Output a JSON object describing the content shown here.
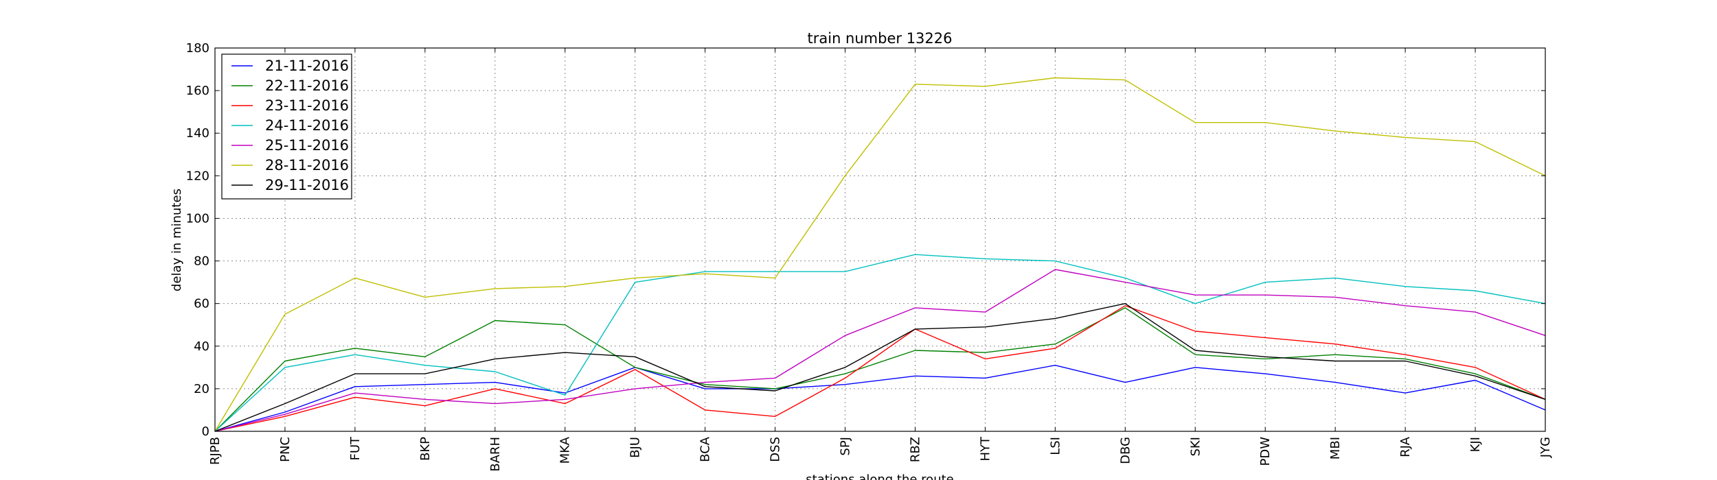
{
  "chart_data": {
    "type": "line",
    "title": "train number 13226",
    "xlabel": "stations along the route",
    "ylabel": "delay in minutes",
    "ylim": [
      0,
      180
    ],
    "yticks": [
      0,
      20,
      40,
      60,
      80,
      100,
      120,
      140,
      160,
      180
    ],
    "grid": true,
    "legend_position": "top-left",
    "categories": [
      "RJPB",
      "PNC",
      "FUT",
      "BKP",
      "BARH",
      "MKA",
      "BJU",
      "BCA",
      "DSS",
      "SPJ",
      "RBZ",
      "HYT",
      "LSI",
      "DBG",
      "SKI",
      "PDW",
      "MBI",
      "RJA",
      "KJI",
      "JYG"
    ],
    "series": [
      {
        "name": "21-11-2016",
        "color": "#0000ff",
        "values": [
          0,
          9,
          21,
          22,
          23,
          18,
          30,
          20,
          20,
          22,
          26,
          25,
          31,
          23,
          30,
          27,
          23,
          18,
          24,
          10
        ]
      },
      {
        "name": "22-11-2016",
        "color": "#008000",
        "values": [
          0,
          33,
          39,
          35,
          52,
          50,
          30,
          22,
          20,
          27,
          38,
          37,
          41,
          58,
          36,
          34,
          36,
          34,
          27,
          15
        ]
      },
      {
        "name": "23-11-2016",
        "color": "#ff0000",
        "values": [
          0,
          7,
          16,
          12,
          20,
          13,
          29,
          10,
          7,
          25,
          48,
          34,
          39,
          59,
          47,
          44,
          41,
          36,
          30,
          15
        ]
      },
      {
        "name": "24-11-2016",
        "color": "#00bfbf",
        "values": [
          0,
          30,
          36,
          31,
          28,
          17,
          70,
          75,
          75,
          75,
          83,
          81,
          80,
          72,
          60,
          70,
          72,
          68,
          66,
          60
        ]
      },
      {
        "name": "25-11-2016",
        "color": "#bf00bf",
        "values": [
          0,
          8,
          18,
          15,
          13,
          15,
          20,
          23,
          25,
          45,
          58,
          56,
          76,
          70,
          64,
          64,
          63,
          59,
          56,
          45
        ]
      },
      {
        "name": "28-11-2016",
        "color": "#bfbf00",
        "values": [
          0,
          55,
          72,
          63,
          67,
          68,
          72,
          74,
          72,
          120,
          163,
          162,
          166,
          165,
          145,
          145,
          141,
          138,
          136,
          120
        ]
      },
      {
        "name": "29-11-2016",
        "color": "#000000",
        "values": [
          0,
          13,
          27,
          27,
          34,
          37,
          35,
          21,
          19,
          30,
          48,
          49,
          53,
          60,
          38,
          35,
          33,
          33,
          26,
          15
        ]
      }
    ]
  }
}
